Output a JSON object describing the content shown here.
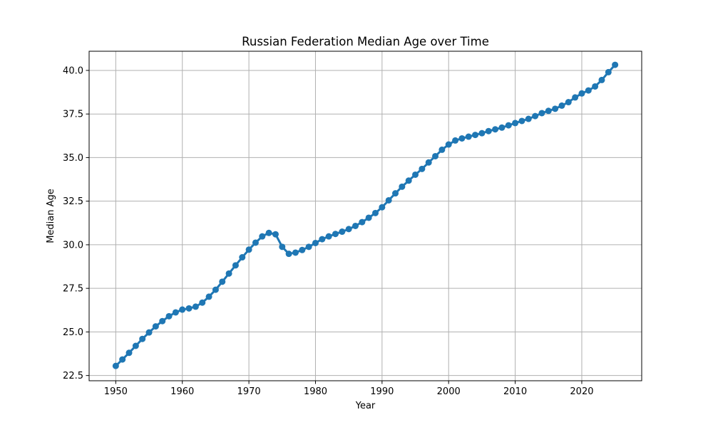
{
  "chart_data": {
    "type": "line",
    "title": "Russian Federation Median Age over Time",
    "xlabel": "Year",
    "ylabel": "Median Age",
    "xlim": [
      1946,
      2029
    ],
    "ylim": [
      22.2,
      41.1
    ],
    "xticks": [
      1950,
      1960,
      1970,
      1980,
      1990,
      2000,
      2010,
      2020
    ],
    "yticks": [
      22.5,
      25.0,
      27.5,
      30.0,
      32.5,
      35.0,
      37.5,
      40.0
    ],
    "ytick_labels": [
      "22.5",
      "25.0",
      "27.5",
      "30.0",
      "32.5",
      "35.0",
      "37.5",
      "40.0"
    ],
    "grid": true,
    "marker": "circle",
    "color": "#1f77b4",
    "x": [
      1950,
      1951,
      1952,
      1953,
      1954,
      1955,
      1956,
      1957,
      1958,
      1959,
      1960,
      1961,
      1962,
      1963,
      1964,
      1965,
      1966,
      1967,
      1968,
      1969,
      1970,
      1971,
      1972,
      1973,
      1974,
      1975,
      1976,
      1977,
      1978,
      1979,
      1980,
      1981,
      1982,
      1983,
      1984,
      1985,
      1986,
      1987,
      1988,
      1989,
      1990,
      1991,
      1992,
      1993,
      1994,
      1995,
      1996,
      1997,
      1998,
      1999,
      2000,
      2001,
      2002,
      2003,
      2004,
      2005,
      2006,
      2007,
      2008,
      2009,
      2010,
      2011,
      2012,
      2013,
      2014,
      2015,
      2016,
      2017,
      2018,
      2019,
      2020,
      2021,
      2022,
      2023,
      2024,
      2025
    ],
    "y": [
      23.05,
      23.42,
      23.8,
      24.2,
      24.6,
      24.97,
      25.32,
      25.62,
      25.9,
      26.12,
      26.28,
      26.35,
      26.45,
      26.68,
      27.02,
      27.42,
      27.88,
      28.35,
      28.82,
      29.28,
      29.72,
      30.12,
      30.48,
      30.68,
      30.6,
      29.88,
      29.48,
      29.55,
      29.7,
      29.88,
      30.1,
      30.32,
      30.48,
      30.62,
      30.75,
      30.9,
      31.08,
      31.3,
      31.55,
      31.82,
      32.15,
      32.55,
      32.95,
      33.33,
      33.68,
      34.02,
      34.35,
      34.72,
      35.08,
      35.45,
      35.75,
      35.98,
      36.1,
      36.2,
      36.3,
      36.4,
      36.52,
      36.62,
      36.72,
      36.85,
      36.98,
      37.1,
      37.22,
      37.38,
      37.55,
      37.68,
      37.8,
      37.98,
      38.18,
      38.45,
      38.68,
      38.85,
      39.08,
      39.45,
      39.9,
      40.32
    ]
  }
}
